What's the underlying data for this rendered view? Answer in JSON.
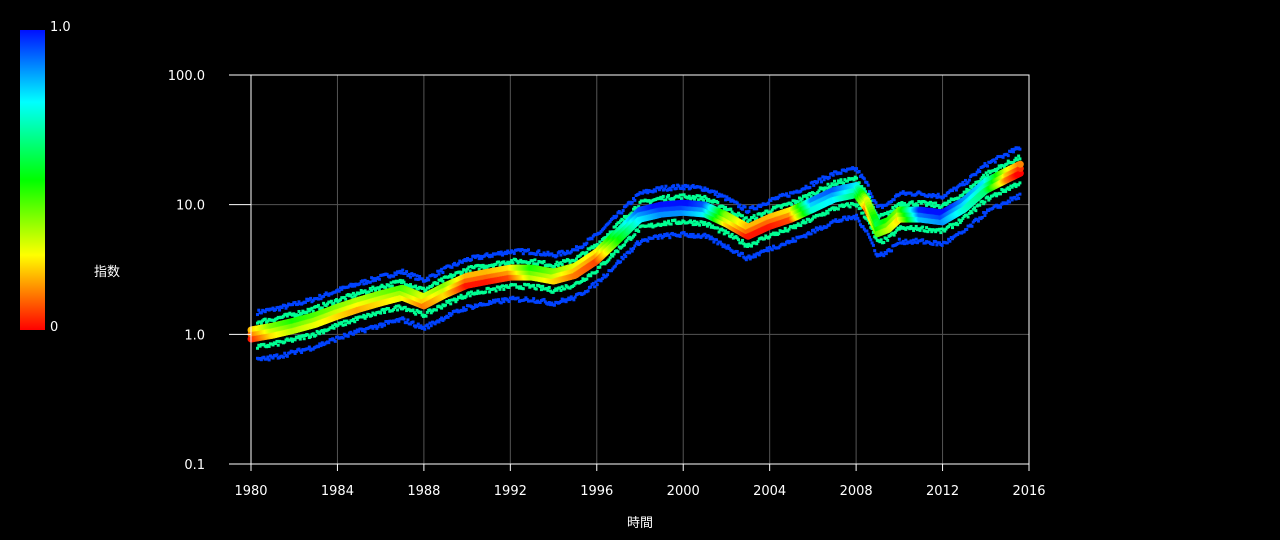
{
  "colorbar": {
    "label": "指数",
    "max_label": "1.0",
    "min_label": "0"
  },
  "chart_data": {
    "type": "scatter",
    "title": "",
    "xlabel": "時間",
    "ylabel": "",
    "yscale": "log",
    "xlim": [
      1980,
      2016
    ],
    "ylim": [
      0.1,
      100
    ],
    "xticks": [
      "1980",
      "1984",
      "1988",
      "1992",
      "1996",
      "2000",
      "2004",
      "2008",
      "2012",
      "2016"
    ],
    "yticks": [
      "0.1",
      "1.0",
      "10.0",
      "100.0"
    ],
    "grid": true,
    "colorbar_label": "指数",
    "colorbar_range": [
      0,
      1.0
    ],
    "center": {
      "x": [
        1980,
        1981,
        1982,
        1983,
        1984,
        1985,
        1986,
        1987,
        1988,
        1989,
        1990,
        1991,
        1992,
        1993,
        1994,
        1995,
        1996,
        1997,
        1998,
        1999,
        2000,
        2001,
        2002,
        2003,
        2004,
        2005,
        2006,
        2007,
        2008,
        2008.5,
        2009,
        2009.5,
        2010,
        2011,
        2012,
        2013,
        2014,
        2015,
        2015.6
      ],
      "y": [
        1.0,
        1.07,
        1.17,
        1.3,
        1.5,
        1.7,
        1.9,
        2.1,
        1.8,
        2.2,
        2.6,
        2.8,
        3.0,
        3.0,
        2.8,
        3.1,
        4.0,
        5.8,
        8.4,
        9.2,
        9.5,
        9.2,
        7.7,
        6.2,
        7.4,
        8.4,
        10,
        12,
        13,
        10,
        6.5,
        7.0,
        8.4,
        8.4,
        8.0,
        10,
        14,
        17,
        19
      ],
      "index": [
        0.1,
        0.3,
        0.4,
        0.35,
        0.3,
        0.25,
        0.3,
        0.35,
        0.2,
        0.3,
        0.1,
        0.1,
        0.15,
        0.4,
        0.3,
        0.2,
        0.15,
        0.55,
        0.85,
        0.95,
        0.95,
        0.85,
        0.3,
        0.1,
        0.1,
        0.15,
        0.8,
        0.85,
        0.7,
        0.2,
        0.5,
        0.4,
        0.3,
        0.9,
        0.95,
        0.8,
        0.7,
        0.2,
        0.05
      ]
    },
    "bands": [
      {
        "name": "upper-outer",
        "multiplier": 1.45,
        "index": 0.95
      },
      {
        "name": "upper-inner",
        "multiplier": 1.22,
        "index": 0.65
      },
      {
        "name": "lower-inner",
        "multiplier": 0.78,
        "index": 0.65
      },
      {
        "name": "lower-outer",
        "multiplier": 0.62,
        "index": 0.95
      }
    ]
  }
}
